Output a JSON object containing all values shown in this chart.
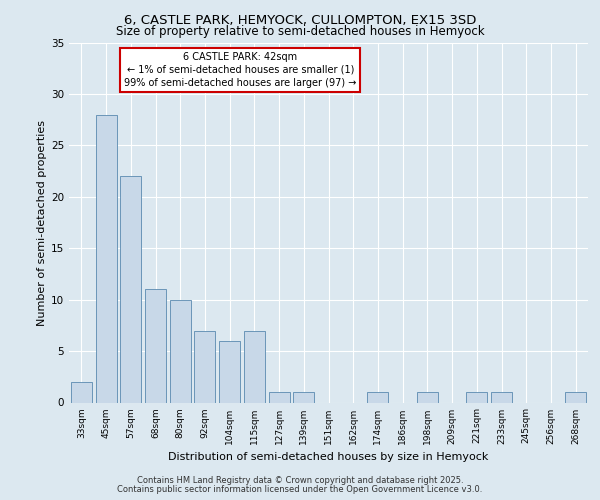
{
  "title_line1": "6, CASTLE PARK, HEMYOCK, CULLOMPTON, EX15 3SD",
  "title_line2": "Size of property relative to semi-detached houses in Hemyock",
  "xlabel": "Distribution of semi-detached houses by size in Hemyock",
  "ylabel": "Number of semi-detached properties",
  "bar_labels": [
    "33sqm",
    "45sqm",
    "57sqm",
    "68sqm",
    "80sqm",
    "92sqm",
    "104sqm",
    "115sqm",
    "127sqm",
    "139sqm",
    "151sqm",
    "162sqm",
    "174sqm",
    "186sqm",
    "198sqm",
    "209sqm",
    "221sqm",
    "233sqm",
    "245sqm",
    "256sqm",
    "268sqm"
  ],
  "bar_values": [
    2,
    28,
    22,
    11,
    10,
    7,
    6,
    7,
    1,
    1,
    0,
    0,
    1,
    0,
    1,
    0,
    1,
    1,
    0,
    0,
    1
  ],
  "bar_color": "#c8d8e8",
  "bar_edge_color": "#5a8ab0",
  "annotation_text": "6 CASTLE PARK: 42sqm\n← 1% of semi-detached houses are smaller (1)\n99% of semi-detached houses are larger (97) →",
  "annotation_box_color": "#ffffff",
  "annotation_box_edge": "#cc0000",
  "ylim": [
    0,
    35
  ],
  "yticks": [
    0,
    5,
    10,
    15,
    20,
    25,
    30,
    35
  ],
  "bg_color": "#dce8f0",
  "plot_bg_color": "#dce8f0",
  "grid_color": "#ffffff",
  "footer_line1": "Contains HM Land Registry data © Crown copyright and database right 2025.",
  "footer_line2": "Contains public sector information licensed under the Open Government Licence v3.0."
}
